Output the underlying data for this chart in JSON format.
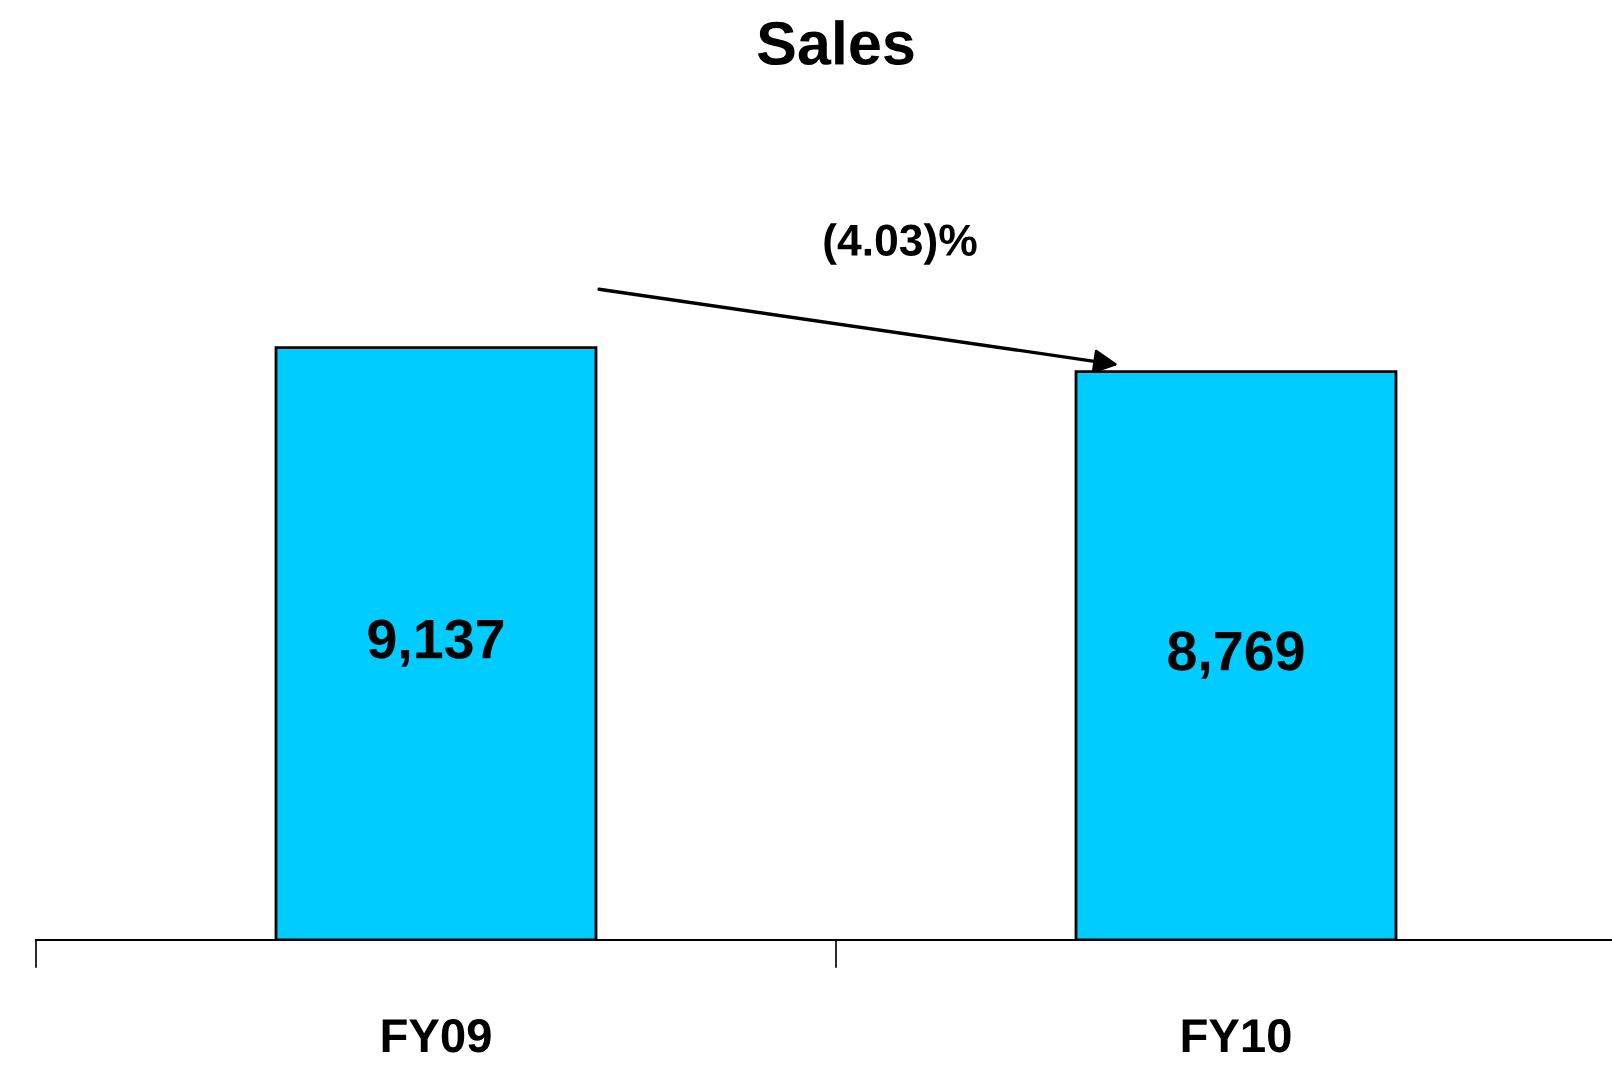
{
  "chart_data": {
    "type": "bar",
    "title": "Sales",
    "categories": [
      "FY09",
      "FY10"
    ],
    "values": [
      9137,
      8769
    ],
    "value_labels": [
      "9,137",
      "8,769"
    ],
    "color": "#00ccff",
    "annotations": [
      "(4.03)%"
    ],
    "grid": false
  }
}
